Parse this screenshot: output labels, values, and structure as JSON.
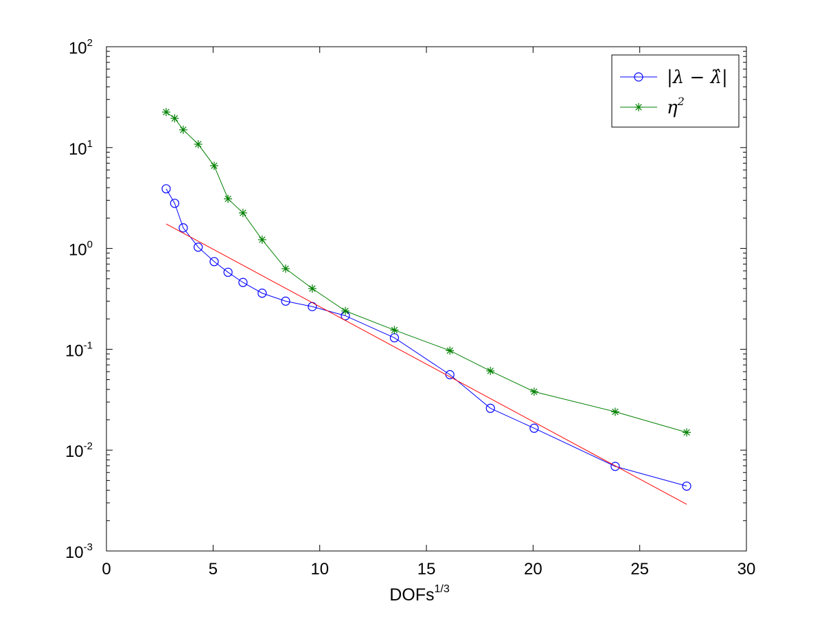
{
  "chart_data": {
    "type": "line",
    "title": "",
    "xlabel": "DOFs",
    "xlabel_superscript": "1/3",
    "ylabel": "",
    "xlim": [
      0,
      30
    ],
    "ylim": [
      0.001,
      100
    ],
    "yscale": "log",
    "grid": false,
    "legend_position": "top-right",
    "x_ticks": [
      "0",
      "5",
      "10",
      "15",
      "20",
      "25",
      "30"
    ],
    "y_ticks": [
      {
        "base": "10",
        "exp": "-3"
      },
      {
        "base": "10",
        "exp": "-2"
      },
      {
        "base": "10",
        "exp": "-1"
      },
      {
        "base": "10",
        "exp": "0"
      },
      {
        "base": "10",
        "exp": "1"
      },
      {
        "base": "10",
        "exp": "2"
      }
    ],
    "series": [
      {
        "name": "|λ − λ̂|",
        "color": "#0000ff",
        "marker": "circle",
        "x": [
          2.8,
          3.2,
          3.6,
          4.3,
          5.05,
          5.7,
          6.4,
          7.3,
          8.4,
          9.65,
          11.2,
          13.5,
          16.1,
          18.0,
          20.05,
          23.85,
          27.2
        ],
        "y": [
          3.9,
          2.8,
          1.6,
          1.03,
          0.74,
          0.58,
          0.46,
          0.36,
          0.3,
          0.265,
          0.215,
          0.13,
          0.056,
          0.026,
          0.0165,
          0.0069,
          0.0044
        ]
      },
      {
        "name": "η",
        "name_superscript": "2",
        "color": "#008000",
        "marker": "asterisk",
        "x": [
          2.8,
          3.2,
          3.6,
          4.3,
          5.05,
          5.7,
          6.4,
          7.3,
          8.4,
          9.65,
          11.2,
          13.5,
          16.1,
          18.0,
          20.05,
          23.85,
          27.2
        ],
        "y": [
          22.5,
          19.5,
          15.0,
          10.8,
          6.6,
          3.1,
          2.25,
          1.22,
          0.63,
          0.4,
          0.24,
          0.155,
          0.097,
          0.061,
          0.038,
          0.024,
          0.015
        ]
      },
      {
        "color": "#ff0000",
        "marker": "none",
        "x": [
          2.8,
          27.2
        ],
        "y": [
          1.75,
          0.0029
        ]
      }
    ]
  }
}
